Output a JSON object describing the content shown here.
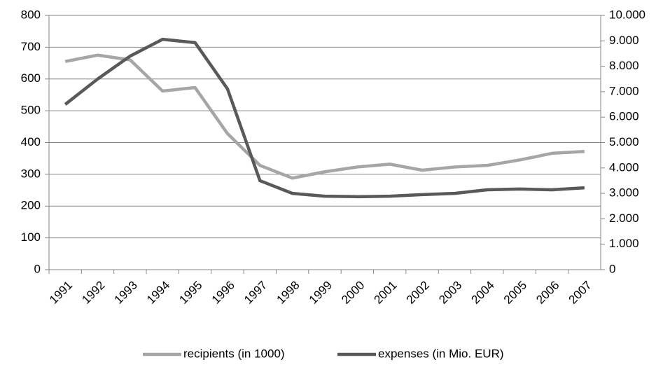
{
  "chart_data": {
    "type": "line",
    "categories": [
      "1991",
      "1992",
      "1993",
      "1994",
      "1995",
      "1996",
      "1997",
      "1998",
      "1999",
      "2000",
      "2001",
      "2002",
      "2003",
      "2004",
      "2005",
      "2006",
      "2007"
    ],
    "series": [
      {
        "name": "recipients (in 1000)",
        "color": "#a6a6a6",
        "values": [
          655,
          675,
          660,
          562,
          573,
          428,
          328,
          288,
          308,
          323,
          332,
          313,
          323,
          328,
          345,
          366,
          372
        ]
      },
      {
        "name": "expenses (in Mio. EUR)",
        "color": "#595959",
        "axis": "y2",
        "values": [
          6500,
          7500,
          8400,
          9060,
          8930,
          7110,
          3500,
          3000,
          2890,
          2870,
          2890,
          2950,
          3000,
          3140,
          3170,
          3140,
          3220
        ]
      }
    ],
    "ylim": [
      0,
      800
    ],
    "yticks": [
      0,
      100,
      200,
      300,
      400,
      500,
      600,
      700,
      800
    ],
    "y2lim": [
      0,
      10000
    ],
    "y2ticks": [
      0,
      {
        "value": 1000,
        "label": "1.000"
      },
      {
        "value": 2000,
        "label": "2.000"
      },
      {
        "value": 3000,
        "label": "3.000"
      },
      {
        "value": 4000,
        "label": "4.000"
      },
      {
        "value": 5000,
        "label": "5.000"
      },
      {
        "value": 6000,
        "label": "6.000"
      },
      {
        "value": 7000,
        "label": "7.000"
      },
      {
        "value": 8000,
        "label": "8.000"
      },
      {
        "value": 9000,
        "label": "9.000"
      },
      {
        "value": 10000,
        "label": "10.000"
      }
    ],
    "grid": true,
    "legend": "bottom"
  }
}
